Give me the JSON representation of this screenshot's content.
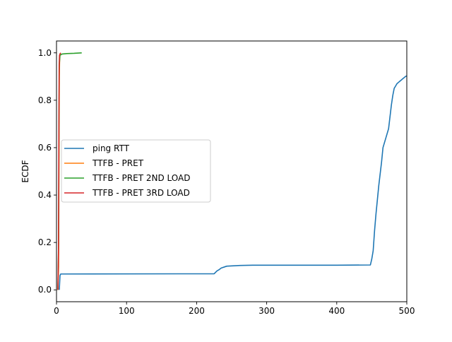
{
  "chart_data": {
    "type": "line",
    "title": "",
    "xlabel": "",
    "ylabel": "ECDF",
    "xlim": [
      0,
      500
    ],
    "ylim": [
      -0.05,
      1.05
    ],
    "x_ticks": [
      0,
      100,
      200,
      300,
      400,
      500
    ],
    "x_tick_labels": [
      "0",
      "100",
      "200",
      "300",
      "400",
      "500"
    ],
    "y_ticks": [
      0.0,
      0.2,
      0.4,
      0.6,
      0.8,
      1.0
    ],
    "y_tick_labels": [
      "0.0",
      "0.2",
      "0.4",
      "0.6",
      "0.8",
      "1.0"
    ],
    "grid": false,
    "legend_position": "center-left",
    "series": [
      {
        "name": "ping RTT",
        "color": "#1f77b4",
        "x": [
          4,
          5,
          6,
          7,
          225,
          229,
          232,
          235,
          240,
          243,
          250,
          262,
          280,
          300,
          350,
          400,
          448,
          450,
          452,
          454,
          456,
          458,
          460,
          462,
          464,
          466,
          468,
          470,
          474,
          476,
          478,
          480,
          482,
          484,
          486,
          488,
          490,
          492,
          494,
          496,
          498,
          500
        ],
        "y": [
          0.0,
          0.06,
          0.067,
          0.067,
          0.068,
          0.08,
          0.085,
          0.092,
          0.097,
          0.1,
          0.101,
          0.103,
          0.104,
          0.104,
          0.104,
          0.104,
          0.105,
          0.13,
          0.165,
          0.25,
          0.32,
          0.38,
          0.44,
          0.49,
          0.54,
          0.6,
          0.62,
          0.64,
          0.68,
          0.73,
          0.78,
          0.82,
          0.85,
          0.86,
          0.87,
          0.875,
          0.88,
          0.885,
          0.89,
          0.895,
          0.9,
          0.903
        ]
      },
      {
        "name": "TTFB - PRET",
        "color": "#ff7f0e",
        "x": [
          2,
          3,
          3.5,
          4,
          4.5,
          5,
          6
        ],
        "y": [
          0.0,
          0.1,
          0.5,
          0.9,
          0.98,
          0.995,
          1.0
        ]
      },
      {
        "name": "TTFB - PRET 2ND LOAD",
        "color": "#2ca02c",
        "x": [
          2,
          3,
          3.5,
          4,
          5,
          8,
          15,
          25,
          36
        ],
        "y": [
          0.0,
          0.2,
          0.7,
          0.95,
          0.99,
          0.995,
          0.997,
          0.998,
          1.0
        ]
      },
      {
        "name": "TTFB - PRET 3RD LOAD",
        "color": "#d62728",
        "x": [
          2,
          2.8,
          3.3,
          3.8,
          4.3,
          5,
          6
        ],
        "y": [
          0.0,
          0.15,
          0.6,
          0.95,
          0.99,
          0.995,
          1.0
        ]
      }
    ]
  }
}
